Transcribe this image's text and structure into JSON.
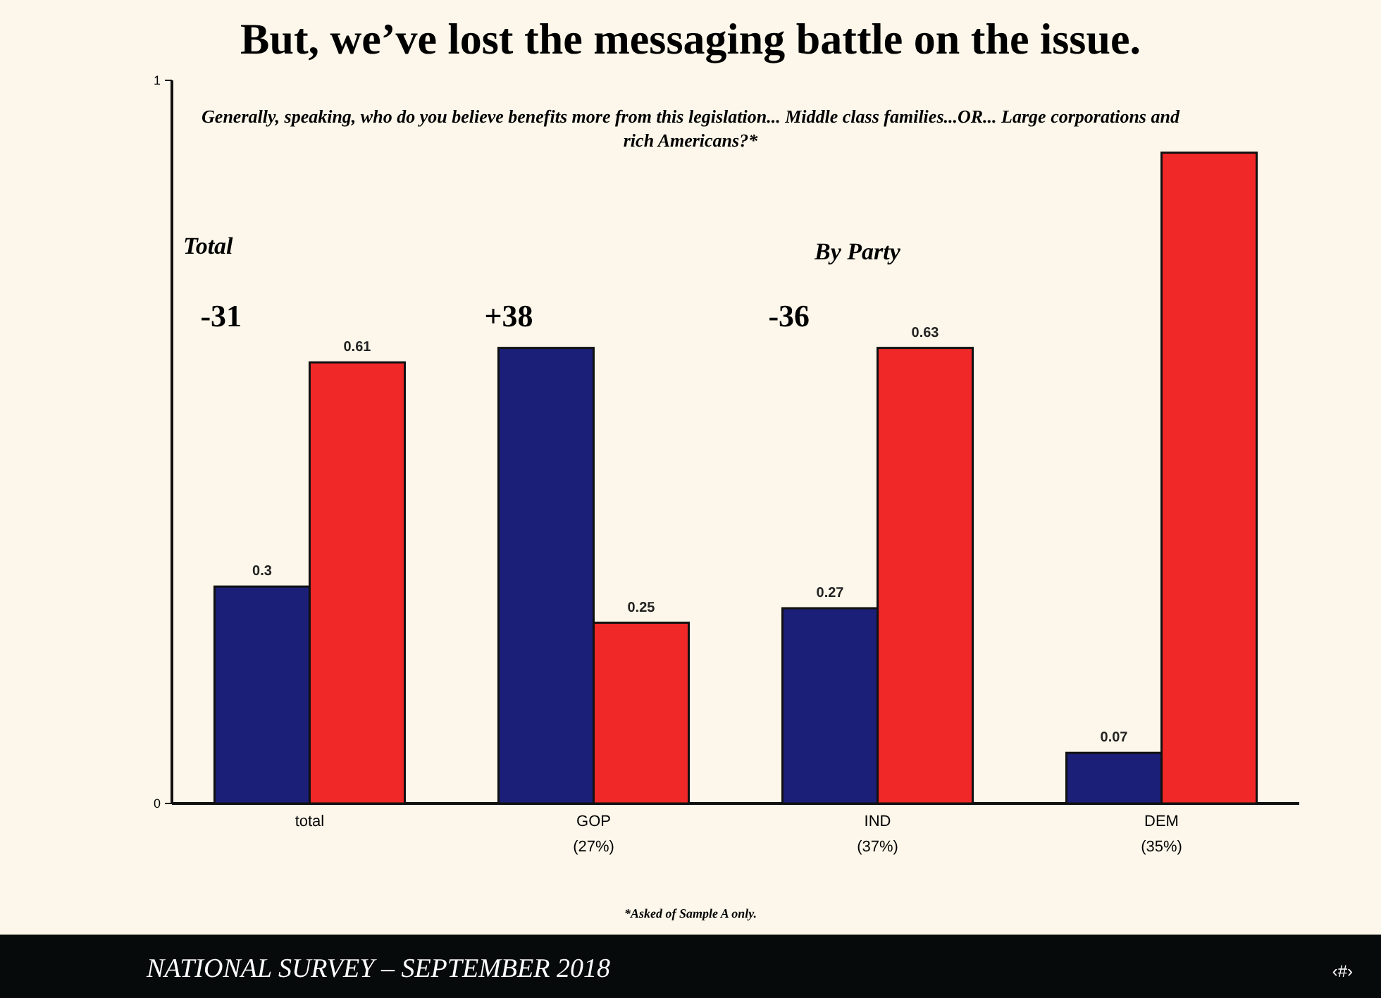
{
  "chart_data": {
    "type": "bar",
    "title": "But, we’ve lost the messaging battle on the issue.",
    "subtitle": "Generally, speaking, who do you believe benefits more from this legislation... Middle class families...OR... Large corporations and rich Americans?*",
    "categories": [
      "total",
      "GOP\n(27%)",
      "IND\n(37%)",
      "DEM\n(35%)"
    ],
    "series": [
      {
        "color": "#1b1f78",
        "values": [
          0.3,
          0.63,
          0.27,
          0.07
        ],
        "value_labels": [
          "0.3",
          null,
          "0.27",
          "0.07"
        ]
      },
      {
        "color": "#f02828",
        "values": [
          0.61,
          0.25,
          0.63,
          0.9
        ],
        "value_labels": [
          "0.61",
          "0.25",
          "0.63",
          null
        ]
      }
    ],
    "ylim": [
      0,
      1
    ],
    "yticks": [
      0,
      1
    ],
    "grid": false,
    "annotations": [
      "-31",
      "+38",
      "-36",
      "Total",
      "By Party",
      "*Asked of Sample A only.",
      "NATIONAL SURVEY – SEPTEMBER 2018",
      "‹#›"
    ]
  }
}
